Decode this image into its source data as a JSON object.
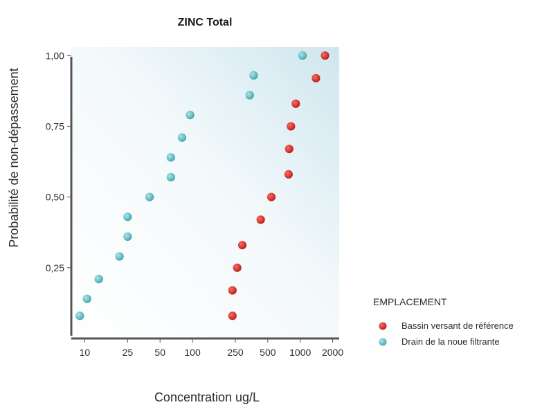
{
  "chart_data": {
    "type": "scatter",
    "title": "ZINC Total",
    "xlabel": "Concentration ug/L",
    "ylabel": "Probabilité de non-dépassement",
    "x_scale": "log",
    "xlim": [
      7.5,
      2300
    ],
    "ylim": [
      0,
      1.03
    ],
    "x_ticks": [
      {
        "value": 10,
        "label": "10"
      },
      {
        "value": 25,
        "label": "25"
      },
      {
        "value": 50,
        "label": "50"
      },
      {
        "value": 100,
        "label": "100"
      },
      {
        "value": 250,
        "label": "250"
      },
      {
        "value": 500,
        "label": "500"
      },
      {
        "value": 1000,
        "label": "1000"
      },
      {
        "value": 2000,
        "label": "2000"
      }
    ],
    "y_ticks": [
      {
        "value": 0.25,
        "label": "0,25"
      },
      {
        "value": 0.5,
        "label": "0,50"
      },
      {
        "value": 0.75,
        "label": "0,75"
      },
      {
        "value": 1.0,
        "label": "1,00"
      }
    ],
    "grid": false,
    "legend": {
      "title": "EMPLACEMENT",
      "position": "right"
    },
    "series": [
      {
        "name": "Bassin versant de référence",
        "color": "#d42424",
        "points": [
          {
            "x": 235,
            "y": 0.08
          },
          {
            "x": 235,
            "y": 0.17
          },
          {
            "x": 260,
            "y": 0.25
          },
          {
            "x": 290,
            "y": 0.33
          },
          {
            "x": 430,
            "y": 0.42
          },
          {
            "x": 540,
            "y": 0.5
          },
          {
            "x": 780,
            "y": 0.58
          },
          {
            "x": 790,
            "y": 0.67
          },
          {
            "x": 820,
            "y": 0.75
          },
          {
            "x": 910,
            "y": 0.83
          },
          {
            "x": 1400,
            "y": 0.92
          },
          {
            "x": 1700,
            "y": 1.0
          }
        ]
      },
      {
        "name": "Drain de la noue filtrante",
        "color": "#4fb8bd",
        "points": [
          {
            "x": 9,
            "y": 0.08
          },
          {
            "x": 10.5,
            "y": 0.14
          },
          {
            "x": 13.5,
            "y": 0.21
          },
          {
            "x": 21,
            "y": 0.29
          },
          {
            "x": 25,
            "y": 0.36
          },
          {
            "x": 25,
            "y": 0.43
          },
          {
            "x": 40,
            "y": 0.5
          },
          {
            "x": 63,
            "y": 0.57
          },
          {
            "x": 63,
            "y": 0.64
          },
          {
            "x": 80,
            "y": 0.71
          },
          {
            "x": 95,
            "y": 0.79
          },
          {
            "x": 340,
            "y": 0.86
          },
          {
            "x": 370,
            "y": 0.93
          },
          {
            "x": 1050,
            "y": 1.0
          }
        ]
      }
    ]
  }
}
